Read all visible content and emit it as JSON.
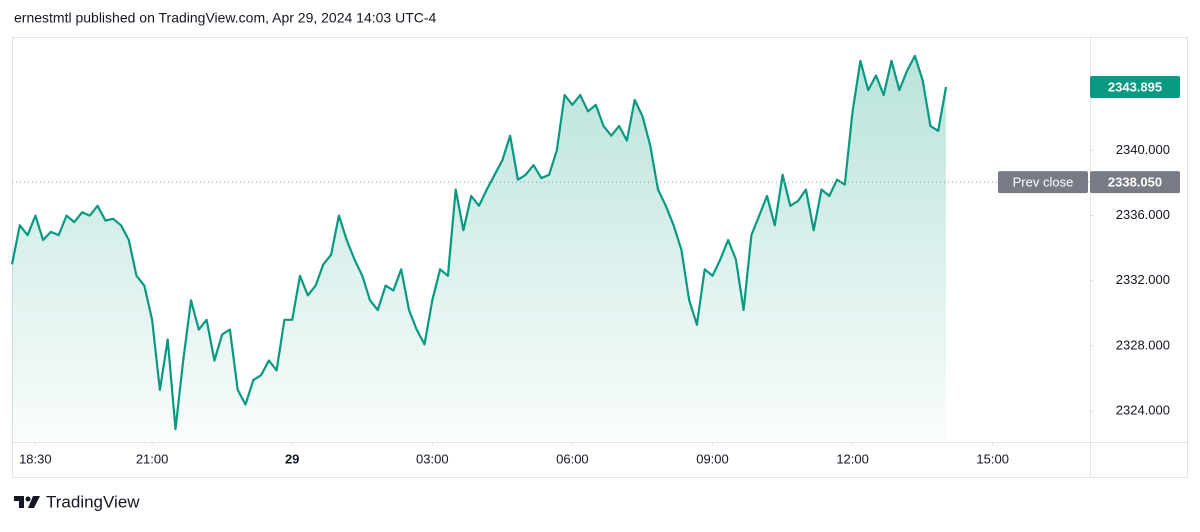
{
  "header": "ernestmtl published on TradingView.com, Apr 29, 2024 14:03 UTC-4",
  "footer": "TradingView",
  "chart_data": {
    "type": "area",
    "x": [
      "2024-04-28T18:00",
      "2024-04-28T18:10",
      "2024-04-28T18:20",
      "2024-04-28T18:30",
      "2024-04-28T18:40",
      "2024-04-28T18:50",
      "2024-04-28T19:00",
      "2024-04-28T19:10",
      "2024-04-28T19:20",
      "2024-04-28T19:30",
      "2024-04-28T19:40",
      "2024-04-28T19:50",
      "2024-04-28T20:00",
      "2024-04-28T20:10",
      "2024-04-28T20:20",
      "2024-04-28T20:30",
      "2024-04-28T20:40",
      "2024-04-28T20:50",
      "2024-04-28T21:00",
      "2024-04-28T21:10",
      "2024-04-28T21:20",
      "2024-04-28T21:30",
      "2024-04-28T21:40",
      "2024-04-28T21:50",
      "2024-04-28T22:00",
      "2024-04-28T22:10",
      "2024-04-28T22:20",
      "2024-04-28T22:30",
      "2024-04-28T22:40",
      "2024-04-28T22:50",
      "2024-04-28T23:00",
      "2024-04-28T23:10",
      "2024-04-28T23:20",
      "2024-04-28T23:30",
      "2024-04-28T23:40",
      "2024-04-28T23:50",
      "2024-04-29T00:00",
      "2024-04-29T00:10",
      "2024-04-29T00:20",
      "2024-04-29T00:30",
      "2024-04-29T00:40",
      "2024-04-29T00:50",
      "2024-04-29T01:00",
      "2024-04-29T01:10",
      "2024-04-29T01:20",
      "2024-04-29T01:30",
      "2024-04-29T01:40",
      "2024-04-29T01:50",
      "2024-04-29T02:00",
      "2024-04-29T02:10",
      "2024-04-29T02:20",
      "2024-04-29T02:30",
      "2024-04-29T02:40",
      "2024-04-29T02:50",
      "2024-04-29T03:00",
      "2024-04-29T03:10",
      "2024-04-29T03:20",
      "2024-04-29T03:30",
      "2024-04-29T03:40",
      "2024-04-29T03:50",
      "2024-04-29T04:00",
      "2024-04-29T04:10",
      "2024-04-29T04:20",
      "2024-04-29T04:30",
      "2024-04-29T04:40",
      "2024-04-29T04:50",
      "2024-04-29T05:00",
      "2024-04-29T05:10",
      "2024-04-29T05:20",
      "2024-04-29T05:30",
      "2024-04-29T05:40",
      "2024-04-29T05:50",
      "2024-04-29T06:00",
      "2024-04-29T06:10",
      "2024-04-29T06:20",
      "2024-04-29T06:30",
      "2024-04-29T06:40",
      "2024-04-29T06:50",
      "2024-04-29T07:00",
      "2024-04-29T07:10",
      "2024-04-29T07:20",
      "2024-04-29T07:30",
      "2024-04-29T07:40",
      "2024-04-29T07:50",
      "2024-04-29T08:00",
      "2024-04-29T08:10",
      "2024-04-29T08:20",
      "2024-04-29T08:30",
      "2024-04-29T08:40",
      "2024-04-29T08:50",
      "2024-04-29T09:00",
      "2024-04-29T09:10",
      "2024-04-29T09:20",
      "2024-04-29T09:30",
      "2024-04-29T09:40",
      "2024-04-29T09:50",
      "2024-04-29T10:00",
      "2024-04-29T10:10",
      "2024-04-29T10:20",
      "2024-04-29T10:30",
      "2024-04-29T10:40",
      "2024-04-29T10:50",
      "2024-04-29T11:00",
      "2024-04-29T11:10",
      "2024-04-29T11:20",
      "2024-04-29T11:30",
      "2024-04-29T11:40",
      "2024-04-29T11:50",
      "2024-04-29T12:00",
      "2024-04-29T12:10",
      "2024-04-29T12:20",
      "2024-04-29T12:30",
      "2024-04-29T12:40",
      "2024-04-29T12:50",
      "2024-04-29T13:00",
      "2024-04-29T13:10",
      "2024-04-29T13:20",
      "2024-04-29T13:30",
      "2024-04-29T13:40",
      "2024-04-29T13:50",
      "2024-04-29T14:00"
    ],
    "series": [
      {
        "color": "#089981",
        "values": [
          2333.0,
          2335.4,
          2334.8,
          2336.0,
          2334.5,
          2335.0,
          2334.8,
          2336.0,
          2335.6,
          2336.2,
          2336.0,
          2336.6,
          2335.7,
          2335.8,
          2335.4,
          2334.5,
          2332.3,
          2331.7,
          2329.6,
          2325.3,
          2328.4,
          2322.9,
          2327.1,
          2330.8,
          2329.0,
          2329.6,
          2327.1,
          2328.7,
          2329.0,
          2325.3,
          2324.4,
          2325.9,
          2326.2,
          2327.1,
          2326.5,
          2329.6,
          2329.6,
          2332.3,
          2331.1,
          2331.7,
          2333.0,
          2333.6,
          2336.0,
          2334.5,
          2333.3,
          2332.3,
          2330.8,
          2330.2,
          2331.7,
          2331.4,
          2332.7,
          2330.2,
          2329.0,
          2328.1,
          2330.8,
          2332.7,
          2332.3,
          2337.6,
          2335.1,
          2337.2,
          2336.6,
          2337.6,
          2338.5,
          2339.4,
          2340.9,
          2338.2,
          2338.5,
          2339.1,
          2338.3,
          2338.5,
          2340.0,
          2343.4,
          2342.8,
          2343.4,
          2342.4,
          2342.8,
          2341.5,
          2340.9,
          2341.5,
          2340.6,
          2343.1,
          2342.1,
          2340.3,
          2337.6,
          2336.6,
          2335.4,
          2333.9,
          2330.8,
          2329.3,
          2332.7,
          2332.3,
          2333.3,
          2334.5,
          2333.3,
          2330.2,
          2334.8,
          2336.0,
          2337.2,
          2335.4,
          2338.5,
          2336.6,
          2336.9,
          2337.6,
          2335.1,
          2337.6,
          2337.2,
          2338.2,
          2337.9,
          2342.4,
          2345.5,
          2343.7,
          2344.6,
          2343.4,
          2345.5,
          2343.7,
          2344.9,
          2345.8,
          2344.3,
          2341.5,
          2341.2,
          2343.895
        ]
      }
    ],
    "xlim": [
      "2024-04-28T18:00",
      "2024-04-29T17:05"
    ],
    "xticks": [
      {
        "value": "2024-04-28T18:30",
        "label": "18:30"
      },
      {
        "value": "2024-04-28T21:00",
        "label": "21:00"
      },
      {
        "value": "2024-04-29T00:00",
        "label": "29"
      },
      {
        "value": "2024-04-29T03:00",
        "label": "03:00"
      },
      {
        "value": "2024-04-29T06:00",
        "label": "06:00"
      },
      {
        "value": "2024-04-29T09:00",
        "label": "09:00"
      },
      {
        "value": "2024-04-29T12:00",
        "label": "12:00"
      },
      {
        "value": "2024-04-29T15:00",
        "label": "15:00"
      }
    ],
    "ylim": [
      2322.1,
      2346.9
    ],
    "yticks": [
      {
        "value": 2324,
        "label": "2324.000"
      },
      {
        "value": 2328,
        "label": "2328.000"
      },
      {
        "value": 2332,
        "label": "2332.000"
      },
      {
        "value": 2336,
        "label": "2336.000"
      },
      {
        "value": 2340,
        "label": "2340.000"
      }
    ],
    "prev_close": {
      "name": "Prev close",
      "value": 2338.05,
      "value_label": "2338.050",
      "color": "#787b86"
    },
    "grid": false
  }
}
